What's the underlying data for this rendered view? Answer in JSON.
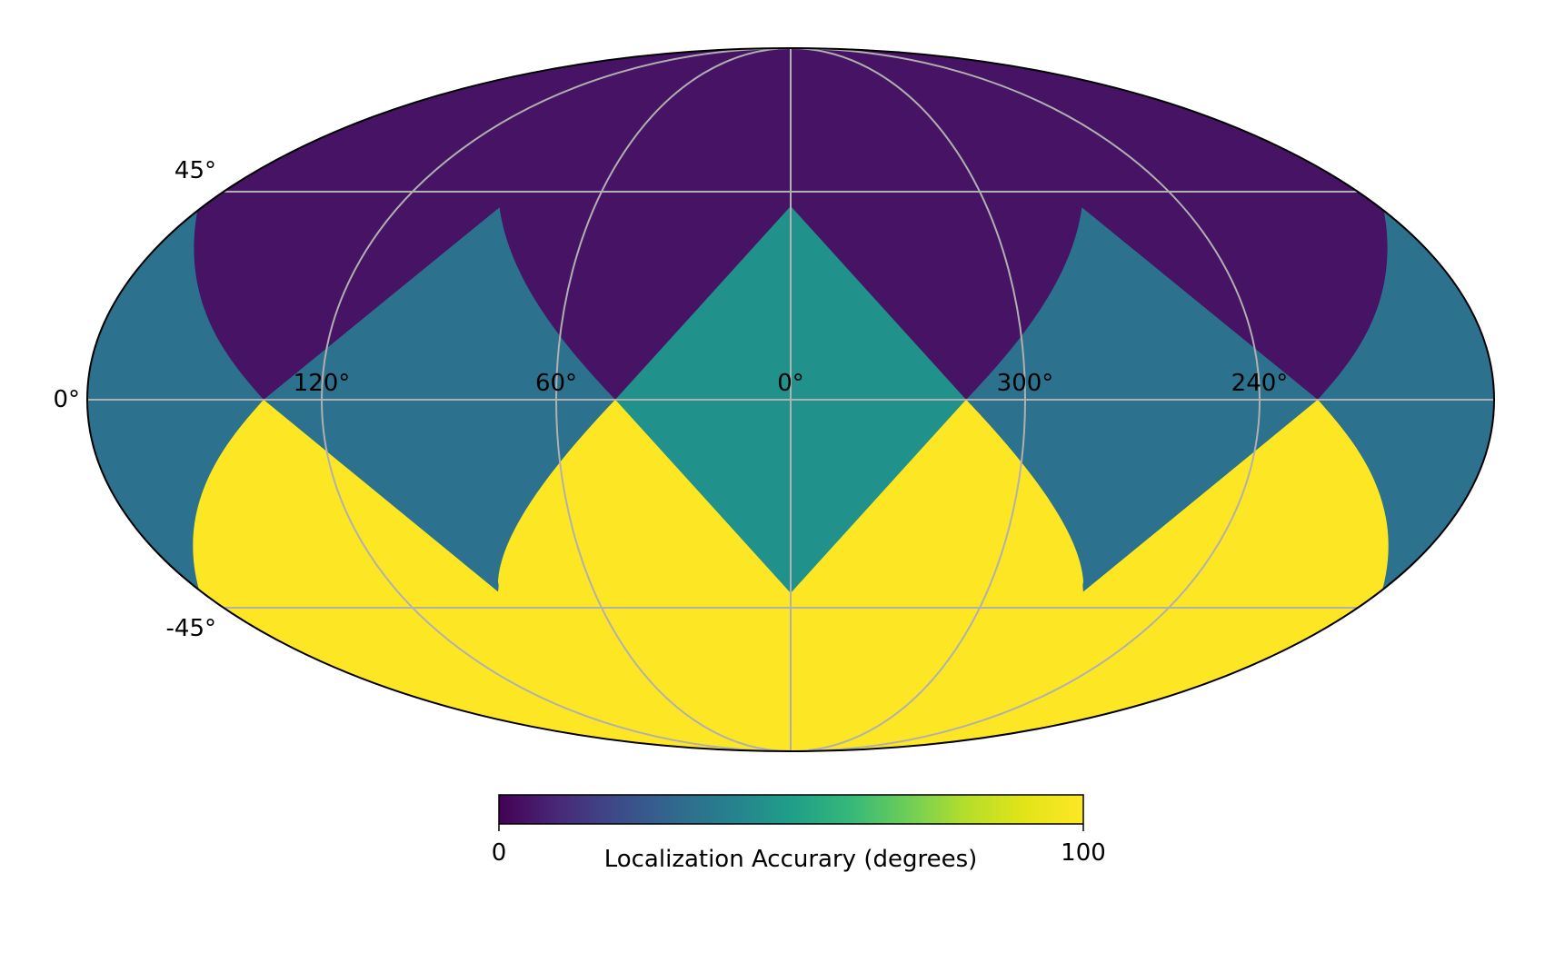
{
  "chart_data": {
    "type": "heatmap",
    "projection": "mollweide",
    "title": "",
    "colormap": "viridis",
    "zones": [
      {
        "name": "north-cap",
        "value": 5
      },
      {
        "name": "north-band",
        "value": 33
      },
      {
        "name": "equatorial-center",
        "value": 50
      },
      {
        "name": "south-band",
        "value": 97
      }
    ],
    "graticule": {
      "lon_ticks": [
        {
          "lon": 120,
          "label": "120°"
        },
        {
          "lon": 60,
          "label": "60°"
        },
        {
          "lon": 0,
          "label": "0°"
        },
        {
          "lon": -60,
          "label": "300°"
        },
        {
          "lon": -120,
          "label": "240°"
        }
      ],
      "lat_ticks": [
        {
          "lat": 45,
          "label": "45°"
        },
        {
          "lat": 0,
          "label": "0°"
        },
        {
          "lat": -45,
          "label": "-45°"
        }
      ],
      "grid": true,
      "grid_color": "#b0b0b0"
    },
    "colorbar": {
      "label": "Localization Accurary (degrees)",
      "min": 0,
      "max": 100,
      "tick_labels": [
        "0",
        "100"
      ],
      "orientation": "horizontal",
      "position": "bottom"
    },
    "colors": {
      "v5": "#471365",
      "v33": "#2c728e",
      "v50": "#21918c",
      "v97": "#fde725"
    }
  }
}
